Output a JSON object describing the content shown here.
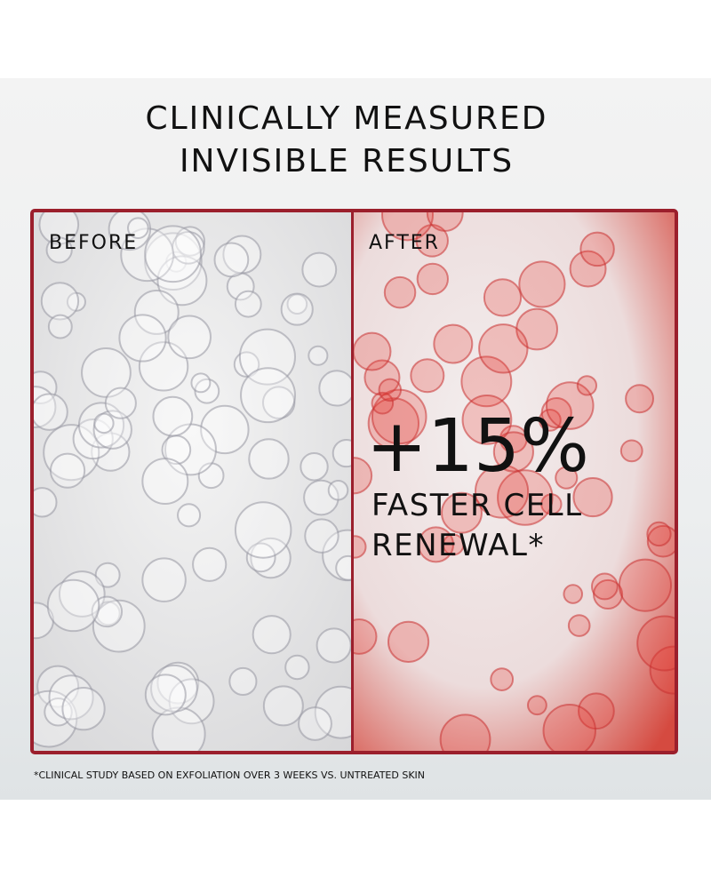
{
  "title": {
    "line1": "CLINICALLY MEASURED",
    "line2": "INVISIBLE RESULTS"
  },
  "before": {
    "label": "BEFORE"
  },
  "after": {
    "label": "AFTER",
    "headline": "+15%",
    "line1": "FASTER CELL",
    "line2": "RENEWAL*"
  },
  "footnote": "*CLINICAL STUDY BASED ON EXFOLIATION OVER 3 WEEKS VS. UNTREATED SKIN"
}
